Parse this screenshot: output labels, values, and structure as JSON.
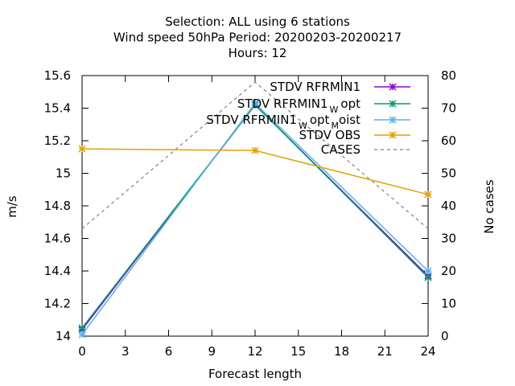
{
  "chart_data": {
    "type": "line",
    "title_lines": [
      "Selection: ALL using     6 stations",
      "Wind speed 50hPa   Period: 20200203-20200217",
      "Hours:  12"
    ],
    "xlabel": "Forecast length",
    "ylabel": "m/s",
    "y2label": "No cases",
    "x_ticks": [
      0,
      3,
      6,
      9,
      12,
      15,
      18,
      21,
      24
    ],
    "y_ticks": [
      "14",
      "14.2",
      "14.4",
      "14.6",
      "14.8",
      "15",
      "15.2",
      "15.4",
      "15.6"
    ],
    "y2_ticks": [
      "0",
      "10",
      "20",
      "30",
      "40",
      "50",
      "60",
      "70",
      "80"
    ],
    "xlim": [
      0,
      24
    ],
    "ylim": [
      14,
      15.6
    ],
    "y2lim": [
      0,
      80
    ],
    "grid": false,
    "legend_position": "top-right",
    "series": [
      {
        "name": "STDV RFRMIN1",
        "legend_main": "STDV RFRMIN1",
        "legend_sub1": "",
        "legend_mid": "",
        "legend_sub2": "",
        "legend_tail": "",
        "color": "#9400d3",
        "dash": "",
        "axis": "y",
        "marker": "x-star",
        "x": [
          0,
          12,
          24
        ],
        "y": [
          14.04,
          15.42,
          14.37
        ]
      },
      {
        "name": "STDV RFRMIN1 W opt",
        "legend_main": "STDV RFRMIN1",
        "legend_sub1": "W",
        "legend_mid": "opt",
        "legend_sub2": "",
        "legend_tail": "",
        "color": "#009e73",
        "dash": "",
        "axis": "y",
        "marker": "x-star",
        "x": [
          0,
          12,
          24
        ],
        "y": [
          14.05,
          15.42,
          14.36
        ]
      },
      {
        "name": "STDV RFRMIN1 W opt M oist",
        "legend_main": "STDV RFRMIN1",
        "legend_sub1": "W",
        "legend_mid": "opt",
        "legend_sub2": "M",
        "legend_tail": "oist",
        "color": "#56b4e9",
        "dash": "",
        "axis": "y",
        "marker": "x-star",
        "x": [
          0,
          12,
          24
        ],
        "y": [
          14.01,
          15.43,
          14.4
        ]
      },
      {
        "name": "STDV OBS",
        "legend_main": "STDV OBS",
        "legend_sub1": "",
        "legend_mid": "",
        "legend_sub2": "",
        "legend_tail": "",
        "color": "#e69f00",
        "dash": "",
        "axis": "y",
        "marker": "x-star",
        "x": [
          0,
          12,
          24
        ],
        "y": [
          15.15,
          15.14,
          14.87
        ]
      },
      {
        "name": "CASES",
        "legend_main": "CASES",
        "legend_sub1": "",
        "legend_mid": "",
        "legend_sub2": "",
        "legend_tail": "",
        "color": "#808080",
        "dash": "4,4",
        "axis": "y2",
        "marker": "none",
        "x": [
          0,
          12,
          24
        ],
        "y": [
          33,
          78,
          33
        ]
      }
    ]
  }
}
